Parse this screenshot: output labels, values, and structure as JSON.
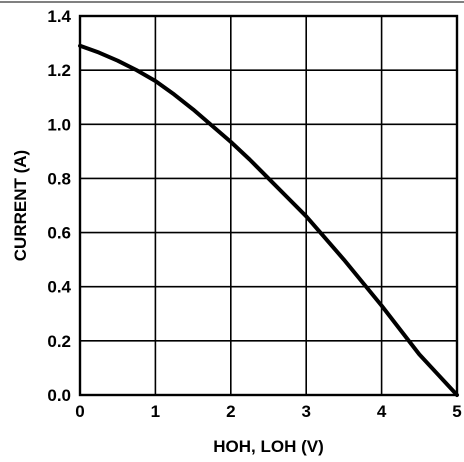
{
  "chart_data": {
    "type": "line",
    "title": "",
    "xlabel": "HOH, LOH (V)",
    "ylabel": "CURRENT (A)",
    "xlim": [
      0,
      5
    ],
    "ylim": [
      0,
      1.4
    ],
    "xticks": [
      "0",
      "1",
      "2",
      "3",
      "4",
      "5"
    ],
    "yticks": [
      "0.0",
      "0.2",
      "0.4",
      "0.6",
      "0.8",
      "1.0",
      "1.2",
      "1.4"
    ],
    "grid": true,
    "series": [
      {
        "x": [
          0,
          0.25,
          0.5,
          0.75,
          1.0,
          1.25,
          1.5,
          1.75,
          2.0,
          2.25,
          2.5,
          2.75,
          3.0,
          3.25,
          3.5,
          3.75,
          4.0,
          4.25,
          4.5,
          4.75,
          5.0
        ],
        "y": [
          1.29,
          1.265,
          1.235,
          1.2,
          1.16,
          1.11,
          1.055,
          0.995,
          0.935,
          0.87,
          0.8,
          0.73,
          0.66,
          0.58,
          0.5,
          0.415,
          0.33,
          0.24,
          0.15,
          0.075,
          0.0
        ]
      }
    ]
  }
}
